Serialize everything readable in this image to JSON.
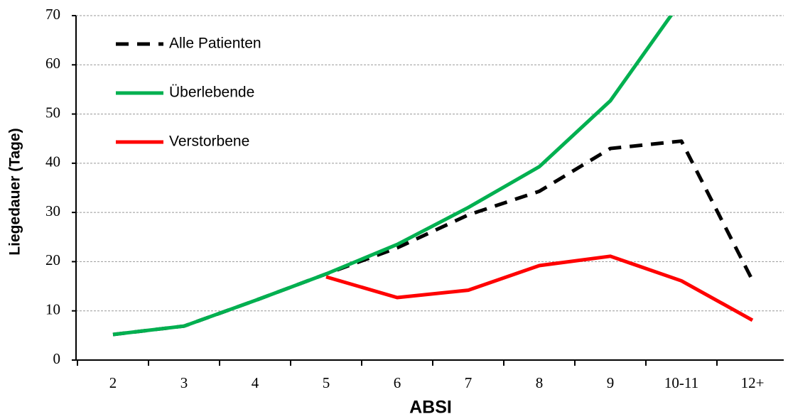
{
  "chart_data": {
    "type": "line",
    "x_label": "ABSI",
    "y_label": "Liegedauer (Tage)",
    "categories": [
      "2",
      "3",
      "4",
      "5",
      "6",
      "7",
      "8",
      "9",
      "10-11",
      "12+"
    ],
    "series": [
      {
        "name": "Alle Patienten",
        "color": "#000000",
        "dash": true,
        "values": [
          5.2,
          6.9,
          12.1,
          17.5,
          22.8,
          29.5,
          34.3,
          43.0,
          44.5,
          16.2
        ]
      },
      {
        "name": "Überlebende",
        "color": "#00b050",
        "dash": false,
        "values": [
          5.2,
          6.9,
          12.1,
          17.5,
          23.5,
          31.0,
          39.3,
          52.7,
          73.0,
          null
        ]
      },
      {
        "name": "Verstorbene",
        "color": "#ff0000",
        "dash": false,
        "values": [
          null,
          null,
          null,
          16.9,
          12.7,
          14.2,
          19.2,
          21.1,
          16.1,
          8.1
        ]
      }
    ],
    "ylim": [
      0,
      70
    ],
    "yticks": [
      0,
      10,
      20,
      30,
      40,
      50,
      60,
      70
    ],
    "grid": true,
    "legend": "upper left"
  }
}
